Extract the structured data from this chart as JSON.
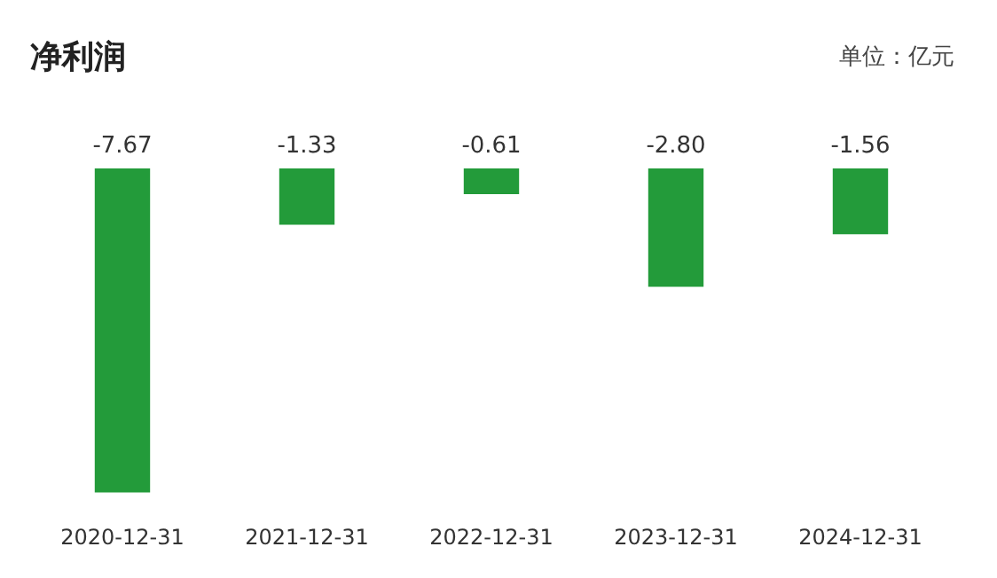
{
  "chart_data": {
    "type": "bar",
    "title": "净利润",
    "subtitle": "单位：亿元",
    "categories": [
      "2020-12-31",
      "2021-12-31",
      "2022-12-31",
      "2023-12-31",
      "2024-12-31"
    ],
    "values": [
      -7.67,
      -1.33,
      -0.61,
      -2.8,
      -1.56
    ],
    "value_labels": [
      "-7.67",
      "-1.33",
      "-0.61",
      "-2.80",
      "-1.56"
    ],
    "color": "#239b3a",
    "grid": false,
    "legend": false
  }
}
